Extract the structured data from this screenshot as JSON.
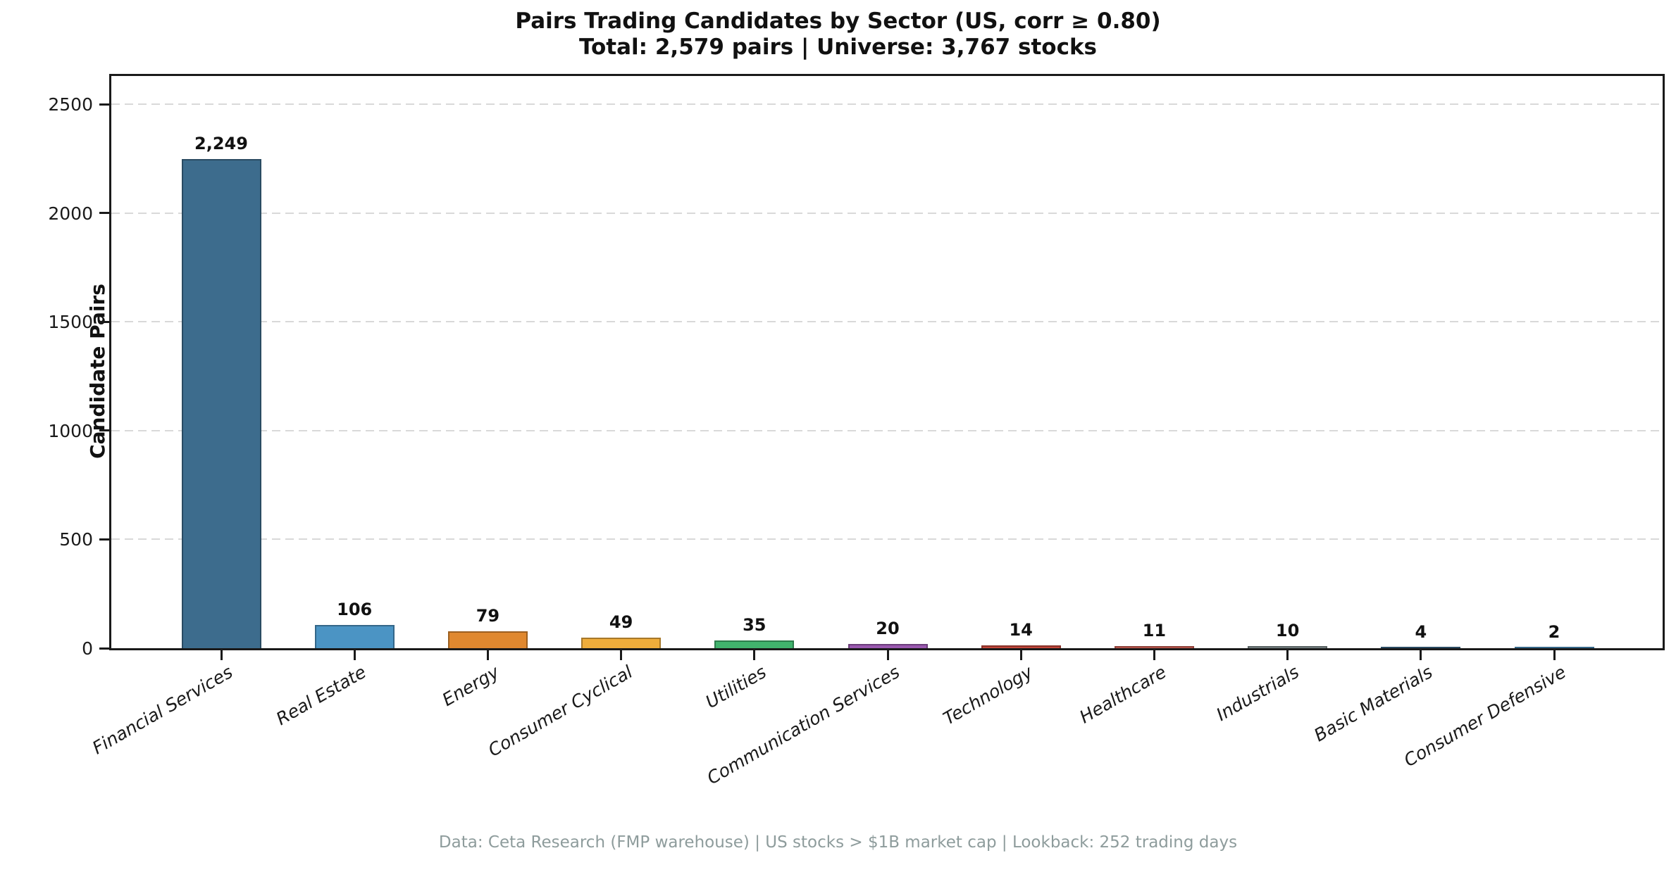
{
  "title": {
    "line1": "Pairs Trading Candidates by Sector (US, corr ≥ 0.80)",
    "line2": "Total: 2,579 pairs | Universe: 3,767 stocks"
  },
  "footer": "Data: Ceta Research (FMP warehouse) | US stocks > $1B market cap | Lookback: 252 trading days",
  "chart_data": {
    "type": "bar",
    "title": "Pairs Trading Candidates by Sector (US, corr ≥ 0.80)",
    "subtitle": "Total: 2,579 pairs | Universe: 3,767 stocks",
    "categories": [
      "Financial Services",
      "Real Estate",
      "Energy",
      "Consumer Cyclical",
      "Utilities",
      "Communication Services",
      "Technology",
      "Healthcare",
      "Industrials",
      "Basic Materials",
      "Consumer Defensive"
    ],
    "values": [
      2249,
      106,
      79,
      49,
      35,
      20,
      14,
      11,
      10,
      4,
      2
    ],
    "value_labels": [
      "2,249",
      "106",
      "79",
      "49",
      "35",
      "20",
      "14",
      "11",
      "10",
      "4",
      "2"
    ],
    "bar_colors": [
      "#3d6c8d",
      "#4b94c4",
      "#e0882f",
      "#efad3b",
      "#41b36d",
      "#9b59b0",
      "#c4473a",
      "#cd5d52",
      "#7f8c8d",
      "#3d6c8d",
      "#4b94c4"
    ],
    "xlabel": "",
    "ylabel": "Candidate Pairs",
    "ylim": [
      0,
      2630
    ],
    "yticks": [
      0,
      500,
      1000,
      1500,
      2000,
      2500
    ],
    "grid": "horizontal dashed gridlines at y ticks",
    "legend_position": "none",
    "xtick_style": "italic, rotated 30 degrees, right-anchored",
    "colors": {
      "spine": "#1a1a1a",
      "grid": "#d9d9d9",
      "title_text": "#111111",
      "tick_text": "#1a1a1a",
      "footer_text": "#8e9c9c"
    }
  }
}
